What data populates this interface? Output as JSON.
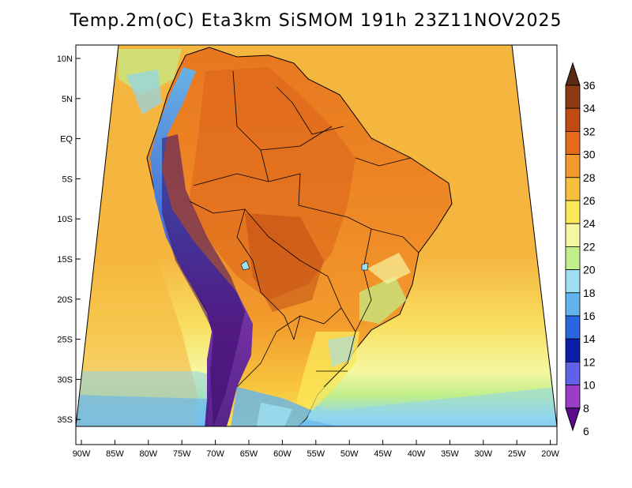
{
  "title": "Temp.2m(oC) Eta3km SiSMOM 191h 23Z11NOV2025",
  "latitude_ticks": [
    "10N",
    "5N",
    "EQ",
    "5S",
    "10S",
    "15S",
    "20S",
    "25S",
    "30S",
    "35S"
  ],
  "longitude_ticks": [
    "90W",
    "85W",
    "80W",
    "75W",
    "70W",
    "65W",
    "60W",
    "55W",
    "50W",
    "45W",
    "40W",
    "35W",
    "30W",
    "25W",
    "20W"
  ],
  "colorbar": {
    "labels": [
      "36",
      "34",
      "32",
      "30",
      "28",
      "26",
      "24",
      "22",
      "20",
      "18",
      "16",
      "14",
      "12",
      "10",
      "8",
      "6"
    ],
    "colors": [
      "#5c2a14",
      "#8b3a12",
      "#c24a14",
      "#e56a1c",
      "#f29a2c",
      "#f7c03c",
      "#fbe85a",
      "#f6f7a0",
      "#c2ef8a",
      "#9ee0f2",
      "#62b4ee",
      "#2a66e0",
      "#0a1fa8",
      "#6060e8",
      "#9a3ec8",
      "#5a0a8a"
    ]
  },
  "palette": {
    "ocean_mid": "#f5b640",
    "ocean_south": "#f8de5e",
    "ocean_cool": "#c7ef8c",
    "ocean_cold": "#8fd6f0",
    "land_hot": "#e8771f",
    "land_warm": "#f09a2c",
    "andes_cold": "#4b1a8a",
    "andes_mid": "#3f72e0"
  }
}
